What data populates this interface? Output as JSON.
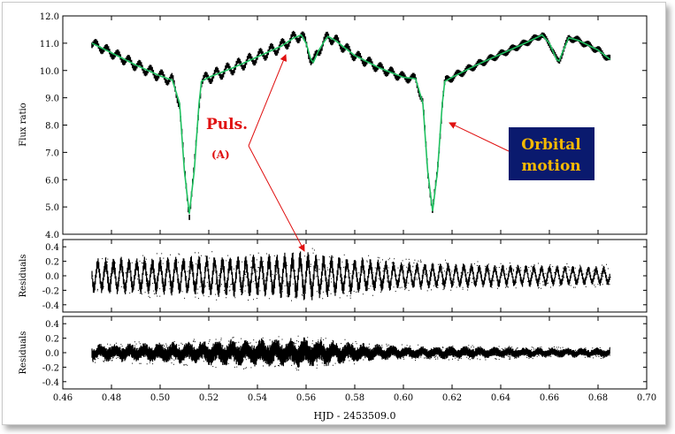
{
  "chart_data": [
    {
      "type": "line",
      "panel": "light curve",
      "ylabel": "Flux ratio",
      "xlabel": "",
      "xlim": [
        0.46,
        0.7
      ],
      "ylim": [
        4.0,
        12.0
      ],
      "y_ticks": [
        "4.0",
        "5.0",
        "6.0",
        "7.0",
        "8.0",
        "9.0",
        "10.0",
        "11.0",
        "12.0"
      ],
      "series": [
        {
          "x": [
            0.472,
            0.48,
            0.49,
            0.5,
            0.505,
            0.508,
            0.51,
            0.512,
            0.514,
            0.516,
            0.517,
            0.52,
            0.53,
            0.54,
            0.55,
            0.555,
            0.558,
            0.56,
            0.562,
            0.563,
            0.565,
            0.567,
            0.569,
            0.572,
            0.58,
            0.59,
            0.6,
            0.605,
            0.608,
            0.61,
            0.612,
            0.614,
            0.616,
            0.617,
            0.62,
            0.63,
            0.64,
            0.65,
            0.657,
            0.66,
            0.663,
            0.664,
            0.666,
            0.668,
            0.672,
            0.68,
            0.685
          ],
          "y": [
            11.0,
            10.65,
            10.2,
            9.8,
            9.65,
            8.8,
            6.3,
            4.75,
            6.3,
            8.8,
            9.6,
            9.75,
            10.1,
            10.5,
            10.9,
            11.2,
            11.3,
            11.0,
            10.4,
            10.3,
            10.7,
            11.0,
            11.25,
            11.1,
            10.55,
            10.1,
            9.75,
            9.7,
            8.8,
            6.3,
            4.85,
            6.3,
            8.8,
            9.6,
            9.75,
            10.2,
            10.6,
            11.0,
            11.3,
            11.0,
            10.4,
            10.35,
            10.8,
            11.2,
            11.1,
            10.75,
            10.4
          ]
        }
      ],
      "annotations": [
        {
          "text": "Puls.",
          "color": "#e01010"
        },
        {
          "text": "(A)",
          "color": "#e01010"
        },
        {
          "text": "Orbital motion",
          "color": "#f5b800",
          "box_color": "#0a1a6e"
        }
      ],
      "colors": {
        "data": "#000000",
        "fit": "#20c060",
        "arrow": "#e01010"
      }
    },
    {
      "type": "scatter",
      "panel": "residuals after orbital fit",
      "ylabel": "Residuals",
      "xlabel": "",
      "xlim": [
        0.46,
        0.7
      ],
      "ylim": [
        -0.5,
        0.5
      ],
      "y_ticks": [
        "0.4",
        "0.2",
        "0.0",
        "-0.2",
        "-0.4"
      ],
      "envelope": {
        "x": [
          0.472,
          0.5,
          0.52,
          0.54,
          0.56,
          0.58,
          0.6,
          0.62,
          0.64,
          0.66,
          0.685
        ],
        "amplitude": [
          0.22,
          0.23,
          0.25,
          0.26,
          0.3,
          0.22,
          0.17,
          0.16,
          0.14,
          0.13,
          0.12
        ]
      }
    },
    {
      "type": "scatter",
      "panel": "residuals after pulsation fit",
      "ylabel": "Residuals",
      "xlabel": "HJD - 2453509.0",
      "xlim": [
        0.46,
        0.7
      ],
      "ylim": [
        -0.5,
        0.5
      ],
      "y_ticks": [
        "0.4",
        "0.2",
        "0.0",
        "-0.2",
        "-0.4"
      ],
      "x_ticks": [
        "0.46",
        "0.48",
        "0.50",
        "0.52",
        "0.54",
        "0.56",
        "0.58",
        "0.60",
        "0.62",
        "0.64",
        "0.66",
        "0.68",
        "0.70"
      ],
      "envelope": {
        "x": [
          0.472,
          0.5,
          0.52,
          0.54,
          0.56,
          0.58,
          0.6,
          0.62,
          0.64,
          0.66,
          0.685
        ],
        "amplitude": [
          0.1,
          0.12,
          0.15,
          0.17,
          0.18,
          0.12,
          0.08,
          0.08,
          0.07,
          0.06,
          0.06
        ]
      }
    }
  ]
}
